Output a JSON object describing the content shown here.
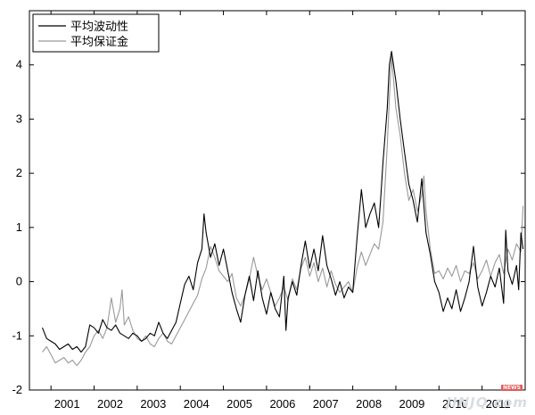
{
  "chart_data": {
    "type": "line",
    "title": "",
    "xlabel": "",
    "ylabel": "",
    "xlim": [
      2000.5,
      2012.0
    ],
    "ylim": [
      -2,
      5
    ],
    "x_ticks": [
      {
        "value": 2001,
        "label": "2001"
      },
      {
        "value": 2002,
        "label": "2002"
      },
      {
        "value": 2003,
        "label": "2003"
      },
      {
        "value": 2004,
        "label": "2004"
      },
      {
        "value": 2005,
        "label": "2005"
      },
      {
        "value": 2006,
        "label": "2006"
      },
      {
        "value": 2007,
        "label": "2007"
      },
      {
        "value": 2008,
        "label": "2008"
      },
      {
        "value": 2009,
        "label": "2009"
      },
      {
        "value": 2010,
        "label": "2010"
      },
      {
        "value": 2011,
        "label": "2011"
      }
    ],
    "y_ticks": [
      {
        "value": -2,
        "label": "-2"
      },
      {
        "value": -1,
        "label": "-1"
      },
      {
        "value": 0,
        "label": "0"
      },
      {
        "value": 1,
        "label": "1"
      },
      {
        "value": 2,
        "label": "2"
      },
      {
        "value": 3,
        "label": "3"
      },
      {
        "value": 4,
        "label": "4"
      }
    ],
    "grid": false,
    "legend_position": "top-left",
    "series": [
      {
        "name": "平均波动性",
        "color": "#000000",
        "points": [
          [
            2000.8,
            -0.85
          ],
          [
            2000.9,
            -1.05
          ],
          [
            2001.0,
            -1.1
          ],
          [
            2001.1,
            -1.15
          ],
          [
            2001.2,
            -1.25
          ],
          [
            2001.3,
            -1.2
          ],
          [
            2001.4,
            -1.15
          ],
          [
            2001.5,
            -1.25
          ],
          [
            2001.6,
            -1.2
          ],
          [
            2001.7,
            -1.3
          ],
          [
            2001.8,
            -1.2
          ],
          [
            2001.9,
            -0.8
          ],
          [
            2002.0,
            -0.85
          ],
          [
            2002.1,
            -0.95
          ],
          [
            2002.2,
            -0.7
          ],
          [
            2002.3,
            -0.85
          ],
          [
            2002.4,
            -0.9
          ],
          [
            2002.5,
            -0.8
          ],
          [
            2002.6,
            -0.95
          ],
          [
            2002.7,
            -1.0
          ],
          [
            2002.8,
            -1.05
          ],
          [
            2002.9,
            -0.95
          ],
          [
            2003.0,
            -1.0
          ],
          [
            2003.1,
            -1.1
          ],
          [
            2003.2,
            -1.05
          ],
          [
            2003.3,
            -0.95
          ],
          [
            2003.4,
            -1.0
          ],
          [
            2003.5,
            -0.75
          ],
          [
            2003.6,
            -0.95
          ],
          [
            2003.7,
            -1.05
          ],
          [
            2003.8,
            -0.9
          ],
          [
            2003.9,
            -0.75
          ],
          [
            2004.0,
            -0.4
          ],
          [
            2004.1,
            -0.05
          ],
          [
            2004.2,
            0.1
          ],
          [
            2004.3,
            -0.15
          ],
          [
            2004.4,
            0.35
          ],
          [
            2004.5,
            0.6
          ],
          [
            2004.55,
            1.25
          ],
          [
            2004.6,
            0.9
          ],
          [
            2004.7,
            0.45
          ],
          [
            2004.8,
            0.7
          ],
          [
            2004.9,
            0.3
          ],
          [
            2005.0,
            0.6
          ],
          [
            2005.1,
            0.2
          ],
          [
            2005.2,
            -0.2
          ],
          [
            2005.3,
            -0.5
          ],
          [
            2005.4,
            -0.75
          ],
          [
            2005.5,
            -0.25
          ],
          [
            2005.6,
            0.1
          ],
          [
            2005.7,
            -0.35
          ],
          [
            2005.8,
            0.2
          ],
          [
            2005.9,
            -0.3
          ],
          [
            2006.0,
            -0.6
          ],
          [
            2006.1,
            -0.2
          ],
          [
            2006.2,
            -0.5
          ],
          [
            2006.3,
            -0.65
          ],
          [
            2006.4,
            0.1
          ],
          [
            2006.45,
            -0.9
          ],
          [
            2006.5,
            -0.3
          ],
          [
            2006.6,
            0.0
          ],
          [
            2006.7,
            -0.25
          ],
          [
            2006.8,
            0.3
          ],
          [
            2006.9,
            0.75
          ],
          [
            2007.0,
            0.25
          ],
          [
            2007.1,
            0.6
          ],
          [
            2007.2,
            0.2
          ],
          [
            2007.3,
            0.85
          ],
          [
            2007.4,
            0.3
          ],
          [
            2007.5,
            0.05
          ],
          [
            2007.6,
            -0.25
          ],
          [
            2007.7,
            0.0
          ],
          [
            2007.8,
            -0.3
          ],
          [
            2007.9,
            -0.1
          ],
          [
            2008.0,
            -0.2
          ],
          [
            2008.1,
            0.8
          ],
          [
            2008.2,
            1.7
          ],
          [
            2008.3,
            1.0
          ],
          [
            2008.4,
            1.25
          ],
          [
            2008.5,
            1.45
          ],
          [
            2008.6,
            1.0
          ],
          [
            2008.65,
            1.55
          ],
          [
            2008.7,
            2.2
          ],
          [
            2008.8,
            3.2
          ],
          [
            2008.85,
            4.0
          ],
          [
            2008.9,
            4.25
          ],
          [
            2009.0,
            3.7
          ],
          [
            2009.1,
            3.0
          ],
          [
            2009.2,
            2.4
          ],
          [
            2009.3,
            1.8
          ],
          [
            2009.4,
            1.5
          ],
          [
            2009.5,
            1.1
          ],
          [
            2009.6,
            1.9
          ],
          [
            2009.7,
            0.9
          ],
          [
            2009.8,
            0.5
          ],
          [
            2009.9,
            0.0
          ],
          [
            2010.0,
            -0.2
          ],
          [
            2010.1,
            -0.55
          ],
          [
            2010.2,
            -0.3
          ],
          [
            2010.3,
            -0.5
          ],
          [
            2010.4,
            -0.15
          ],
          [
            2010.5,
            -0.55
          ],
          [
            2010.6,
            -0.3
          ],
          [
            2010.7,
            0.0
          ],
          [
            2010.8,
            0.65
          ],
          [
            2010.9,
            -0.1
          ],
          [
            2011.0,
            -0.45
          ],
          [
            2011.1,
            -0.2
          ],
          [
            2011.2,
            0.1
          ],
          [
            2011.3,
            -0.1
          ],
          [
            2011.4,
            0.25
          ],
          [
            2011.5,
            -0.4
          ],
          [
            2011.55,
            0.95
          ],
          [
            2011.6,
            0.2
          ],
          [
            2011.7,
            -0.05
          ],
          [
            2011.8,
            0.3
          ],
          [
            2011.85,
            -0.15
          ],
          [
            2011.9,
            0.9
          ],
          [
            2011.95,
            0.6
          ]
        ]
      },
      {
        "name": "平均保证金",
        "color": "#999999",
        "points": [
          [
            2000.8,
            -1.3
          ],
          [
            2000.9,
            -1.2
          ],
          [
            2001.0,
            -1.35
          ],
          [
            2001.1,
            -1.5
          ],
          [
            2001.2,
            -1.45
          ],
          [
            2001.3,
            -1.4
          ],
          [
            2001.4,
            -1.5
          ],
          [
            2001.5,
            -1.45
          ],
          [
            2001.6,
            -1.55
          ],
          [
            2001.7,
            -1.45
          ],
          [
            2001.8,
            -1.3
          ],
          [
            2001.9,
            -1.2
          ],
          [
            2002.0,
            -1.0
          ],
          [
            2002.1,
            -0.9
          ],
          [
            2002.2,
            -1.05
          ],
          [
            2002.3,
            -0.85
          ],
          [
            2002.4,
            -0.3
          ],
          [
            2002.5,
            -0.75
          ],
          [
            2002.6,
            -0.5
          ],
          [
            2002.65,
            -0.15
          ],
          [
            2002.7,
            -0.8
          ],
          [
            2002.8,
            -0.65
          ],
          [
            2002.9,
            -0.9
          ],
          [
            2003.0,
            -1.05
          ],
          [
            2003.1,
            -1.1
          ],
          [
            2003.2,
            -1.0
          ],
          [
            2003.3,
            -1.15
          ],
          [
            2003.4,
            -1.2
          ],
          [
            2003.5,
            -1.05
          ],
          [
            2003.6,
            -0.95
          ],
          [
            2003.7,
            -1.1
          ],
          [
            2003.8,
            -1.15
          ],
          [
            2003.9,
            -1.0
          ],
          [
            2004.0,
            -0.85
          ],
          [
            2004.1,
            -0.7
          ],
          [
            2004.2,
            -0.55
          ],
          [
            2004.3,
            -0.4
          ],
          [
            2004.4,
            -0.25
          ],
          [
            2004.5,
            0.05
          ],
          [
            2004.6,
            0.25
          ],
          [
            2004.7,
            0.65
          ],
          [
            2004.8,
            0.45
          ],
          [
            2004.9,
            0.2
          ],
          [
            2005.0,
            0.1
          ],
          [
            2005.1,
            0.0
          ],
          [
            2005.2,
            0.15
          ],
          [
            2005.3,
            -0.3
          ],
          [
            2005.4,
            -0.45
          ],
          [
            2005.5,
            -0.25
          ],
          [
            2005.6,
            0.05
          ],
          [
            2005.7,
            0.45
          ],
          [
            2005.8,
            0.1
          ],
          [
            2005.9,
            -0.15
          ],
          [
            2006.0,
            0.05
          ],
          [
            2006.1,
            -0.2
          ],
          [
            2006.2,
            -0.45
          ],
          [
            2006.3,
            -0.3
          ],
          [
            2006.4,
            -0.1
          ],
          [
            2006.5,
            -0.35
          ],
          [
            2006.6,
            0.05
          ],
          [
            2006.7,
            -0.15
          ],
          [
            2006.8,
            0.25
          ],
          [
            2006.9,
            0.45
          ],
          [
            2007.0,
            0.1
          ],
          [
            2007.1,
            0.35
          ],
          [
            2007.2,
            0.0
          ],
          [
            2007.3,
            0.25
          ],
          [
            2007.4,
            -0.1
          ],
          [
            2007.5,
            0.2
          ],
          [
            2007.6,
            -0.05
          ],
          [
            2007.7,
            -0.2
          ],
          [
            2007.8,
            -0.1
          ],
          [
            2007.9,
            0.0
          ],
          [
            2008.0,
            -0.2
          ],
          [
            2008.1,
            0.25
          ],
          [
            2008.2,
            0.55
          ],
          [
            2008.3,
            0.3
          ],
          [
            2008.4,
            0.5
          ],
          [
            2008.5,
            0.7
          ],
          [
            2008.6,
            0.6
          ],
          [
            2008.7,
            1.1
          ],
          [
            2008.8,
            2.5
          ],
          [
            2008.85,
            3.4
          ],
          [
            2008.9,
            4.15
          ],
          [
            2008.95,
            3.7
          ],
          [
            2009.0,
            3.2
          ],
          [
            2009.1,
            2.7
          ],
          [
            2009.2,
            2.0
          ],
          [
            2009.3,
            1.5
          ],
          [
            2009.4,
            1.7
          ],
          [
            2009.5,
            1.3
          ],
          [
            2009.6,
            1.6
          ],
          [
            2009.65,
            1.95
          ],
          [
            2009.7,
            1.3
          ],
          [
            2009.8,
            0.6
          ],
          [
            2009.9,
            0.15
          ],
          [
            2010.0,
            0.2
          ],
          [
            2010.1,
            0.05
          ],
          [
            2010.2,
            0.25
          ],
          [
            2010.3,
            0.1
          ],
          [
            2010.4,
            0.3
          ],
          [
            2010.5,
            0.0
          ],
          [
            2010.6,
            0.2
          ],
          [
            2010.7,
            0.15
          ],
          [
            2010.8,
            0.35
          ],
          [
            2010.9,
            0.05
          ],
          [
            2011.0,
            0.2
          ],
          [
            2011.1,
            0.4
          ],
          [
            2011.2,
            0.1
          ],
          [
            2011.3,
            0.35
          ],
          [
            2011.4,
            0.5
          ],
          [
            2011.5,
            0.15
          ],
          [
            2011.6,
            0.6
          ],
          [
            2011.7,
            0.4
          ],
          [
            2011.8,
            0.7
          ],
          [
            2011.9,
            0.55
          ],
          [
            2011.95,
            1.4
          ]
        ]
      }
    ]
  },
  "watermark": {
    "text": "JINJQ.com",
    "badge": "NEWS"
  }
}
